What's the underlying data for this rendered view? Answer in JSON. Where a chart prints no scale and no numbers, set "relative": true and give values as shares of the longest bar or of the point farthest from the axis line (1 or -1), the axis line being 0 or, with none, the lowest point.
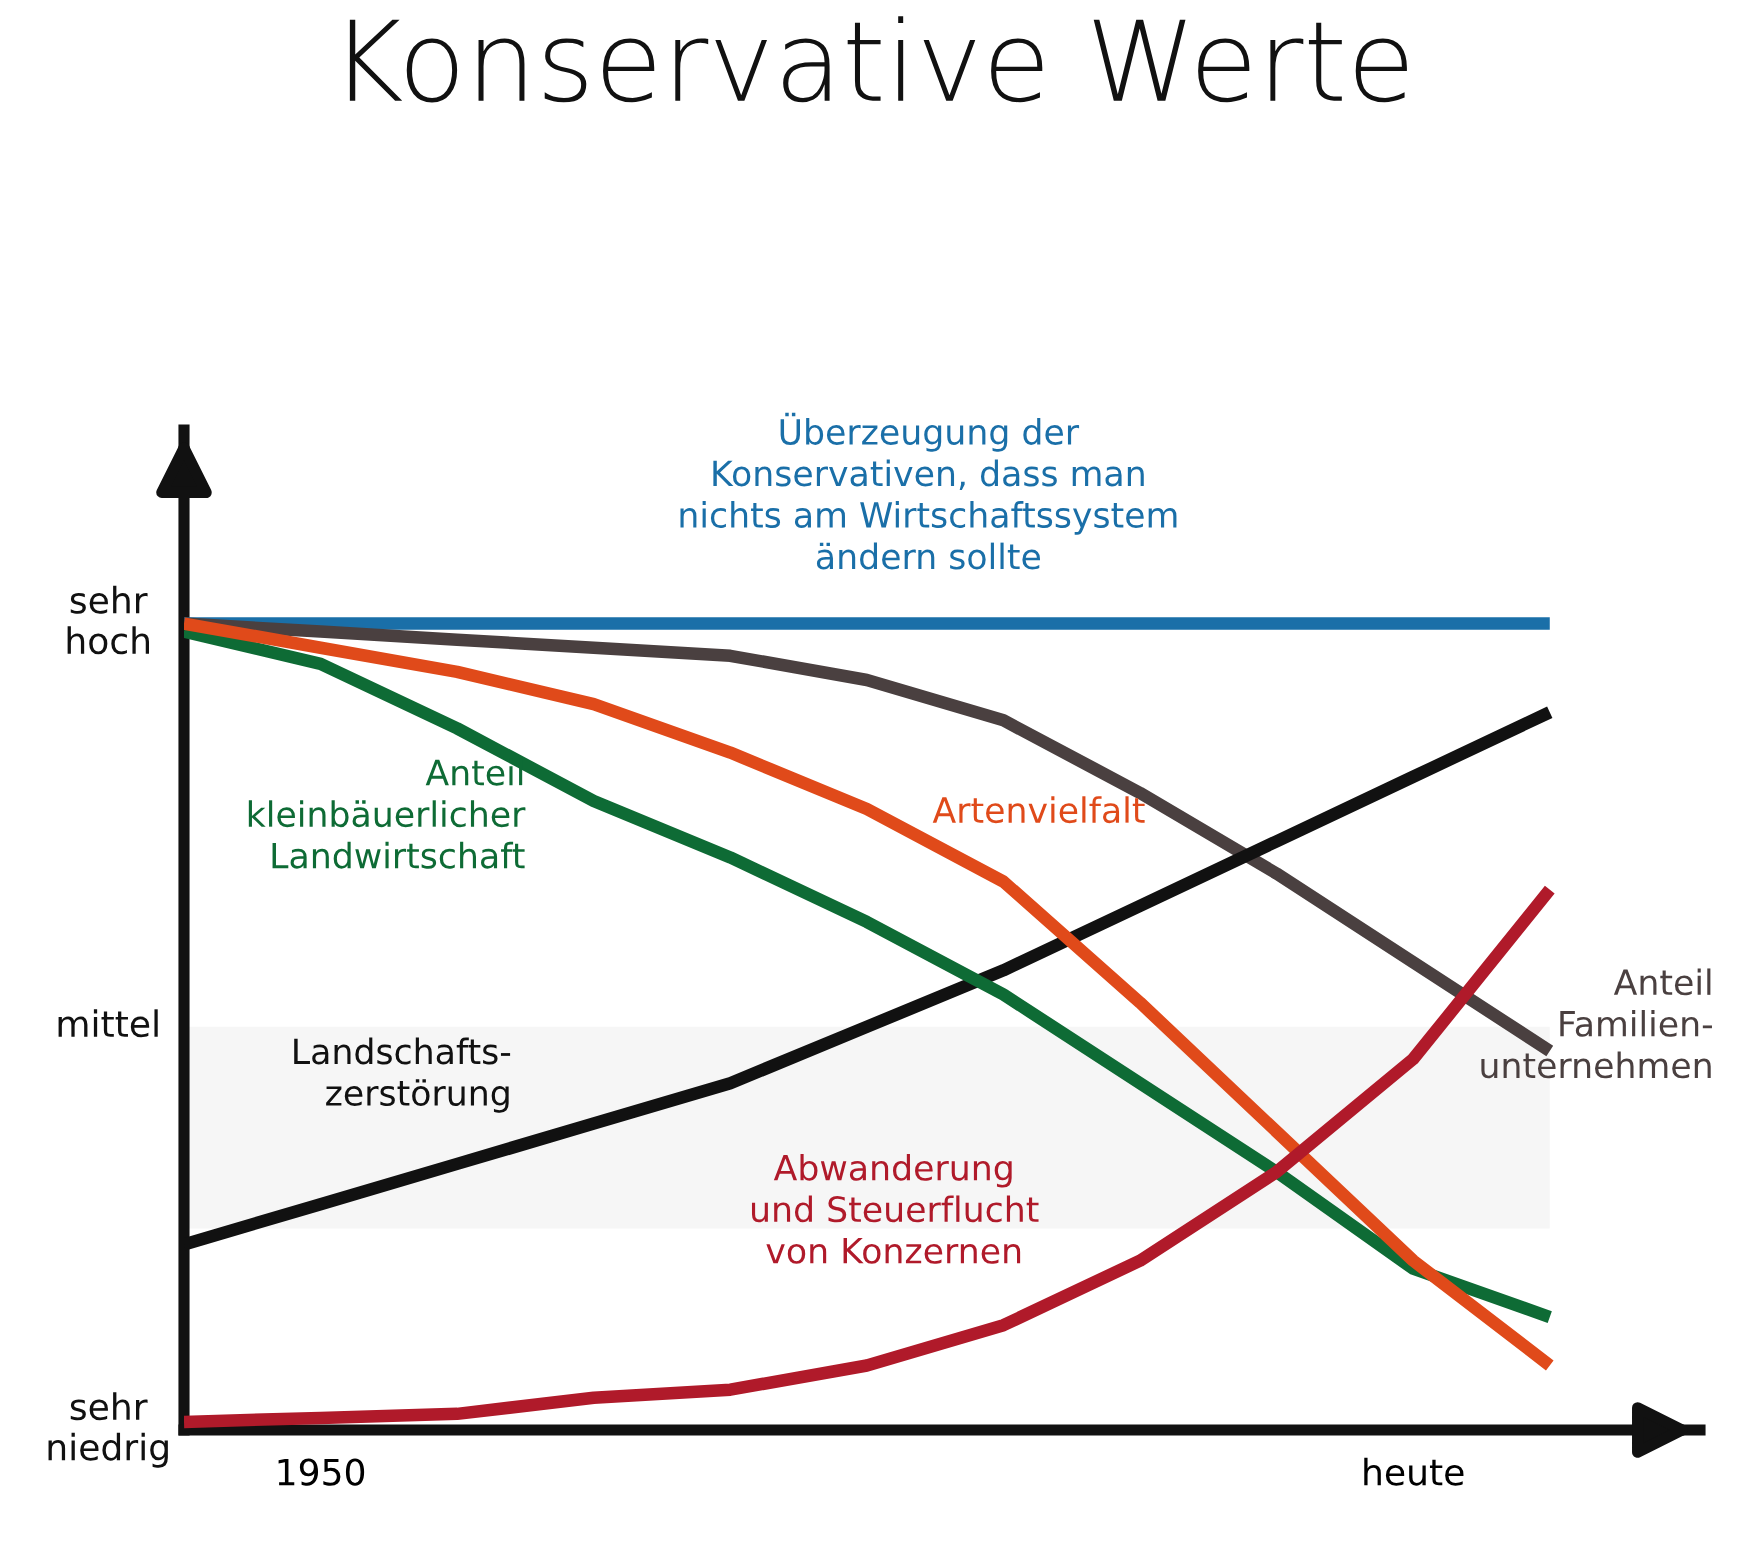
{
  "chart_data": {
    "type": "line",
    "title": "Konservative Werte",
    "relative": true,
    "categories": [
      null,
      "1950",
      null,
      null,
      null,
      null,
      null,
      null,
      null,
      "heute",
      null
    ],
    "annotations": [
      "sehr\nhoch",
      "mittel",
      "sehr\nniedrig"
    ],
    "bands": [
      {
        "axis": "y",
        "from": 0.25,
        "to": 0.5,
        "color": "#f6f6f6"
      }
    ],
    "legend": false,
    "grid": false,
    "marker": "none",
    "line_style": "solid",
    "series": [
      {
        "name": "Überzeugung der\nKonservativen, dass man\nnichts am Wirtschaftssystem\nändern sollte",
        "color": "#1a6fa8",
        "values": [
          1,
          1,
          1,
          1,
          1,
          1,
          1,
          1,
          1,
          1,
          1
        ]
      },
      {
        "name": "Anteil\nFamilien-\nunternehmen",
        "color": "#4a4040",
        "values": [
          1,
          0.99,
          0.98,
          0.97,
          0.96,
          0.93,
          0.88,
          0.79,
          0.69,
          0.58,
          0.47
        ]
      },
      {
        "name": "Landschafts-\nzerstörung",
        "color": "#111111",
        "values": [
          0.23,
          0.28,
          0.33,
          0.38,
          0.43,
          0.5,
          0.57,
          0.65,
          0.73,
          0.81,
          0.89
        ]
      },
      {
        "name": "Anteil\nkleinbäuerlicher\nLandwirtschaft",
        "color": "#0e6b35",
        "values": [
          0.99,
          0.95,
          0.87,
          0.78,
          0.71,
          0.63,
          0.54,
          0.43,
          0.32,
          0.2,
          0.14
        ]
      },
      {
        "name": "Artenvielfalt",
        "color": "#e04a1a",
        "values": [
          1,
          0.97,
          0.94,
          0.9,
          0.84,
          0.77,
          0.68,
          0.53,
          0.37,
          0.21,
          0.08
        ]
      },
      {
        "name": "Abwanderung\nund Steuerflucht\nvon Konzernen",
        "color": "#b01a2a",
        "values": [
          0.01,
          0.015,
          0.02,
          0.04,
          0.05,
          0.08,
          0.13,
          0.21,
          0.32,
          0.46,
          0.67
        ]
      }
    ]
  }
}
